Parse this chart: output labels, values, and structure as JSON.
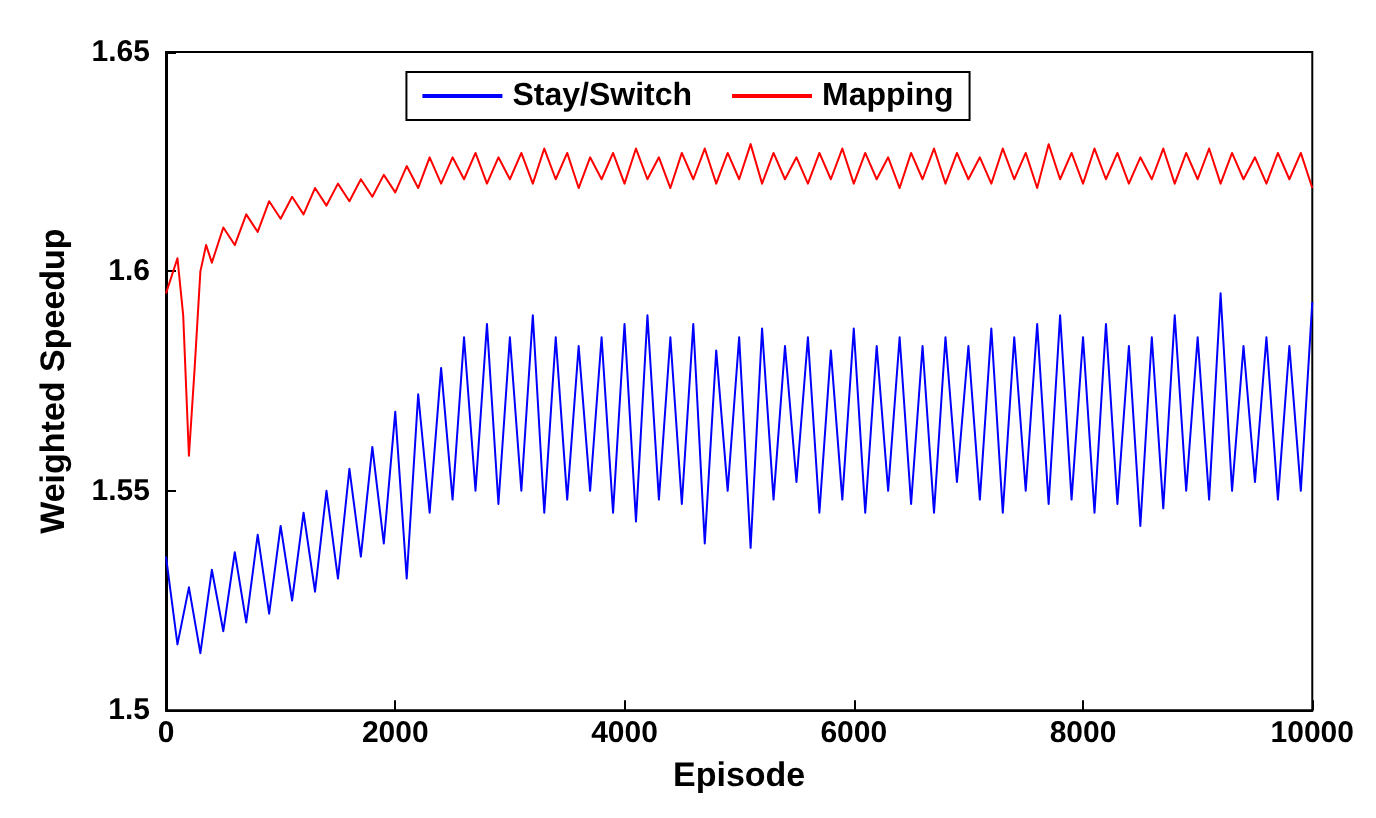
{
  "chart_data": {
    "type": "line",
    "xlabel": "Episode",
    "ylabel": "Weighted Speedup",
    "xlim": [
      0,
      10000
    ],
    "xticks": [
      0,
      2000,
      4000,
      6000,
      8000,
      10000
    ],
    "ylim": [
      1.5,
      1.65
    ],
    "yticks": [
      1.5,
      1.55,
      1.6,
      1.65
    ],
    "grid": false,
    "legend": "top",
    "marker": "none",
    "line_style": "solid",
    "series": [
      {
        "name": "Stay/Switch",
        "color": "#0000ff",
        "x": [
          0,
          100,
          200,
          300,
          400,
          500,
          600,
          700,
          800,
          900,
          1000,
          1100,
          1200,
          1300,
          1400,
          1500,
          1600,
          1700,
          1800,
          1900,
          2000,
          2100,
          2200,
          2300,
          2400,
          2500,
          2600,
          2700,
          2800,
          2900,
          3000,
          3100,
          3200,
          3300,
          3400,
          3500,
          3600,
          3700,
          3800,
          3900,
          4000,
          4100,
          4200,
          4300,
          4400,
          4500,
          4600,
          4700,
          4800,
          4900,
          5000,
          5100,
          5200,
          5300,
          5400,
          5500,
          5600,
          5700,
          5800,
          5900,
          6000,
          6100,
          6200,
          6300,
          6400,
          6500,
          6600,
          6700,
          6800,
          6900,
          7000,
          7100,
          7200,
          7300,
          7400,
          7500,
          7600,
          7700,
          7800,
          7900,
          8000,
          8100,
          8200,
          8300,
          8400,
          8500,
          8600,
          8700,
          8800,
          8900,
          9000,
          9100,
          9200,
          9300,
          9400,
          9500,
          9600,
          9700,
          9800,
          9900,
          10000
        ],
        "values": [
          1.535,
          1.515,
          1.528,
          1.513,
          1.532,
          1.518,
          1.536,
          1.52,
          1.54,
          1.522,
          1.542,
          1.525,
          1.545,
          1.527,
          1.55,
          1.53,
          1.555,
          1.535,
          1.56,
          1.538,
          1.568,
          1.53,
          1.572,
          1.545,
          1.578,
          1.548,
          1.585,
          1.55,
          1.588,
          1.547,
          1.585,
          1.55,
          1.59,
          1.545,
          1.585,
          1.548,
          1.583,
          1.55,
          1.585,
          1.545,
          1.588,
          1.543,
          1.59,
          1.548,
          1.585,
          1.547,
          1.588,
          1.538,
          1.582,
          1.55,
          1.585,
          1.537,
          1.587,
          1.548,
          1.583,
          1.552,
          1.585,
          1.545,
          1.582,
          1.548,
          1.587,
          1.545,
          1.583,
          1.55,
          1.585,
          1.547,
          1.583,
          1.545,
          1.585,
          1.552,
          1.583,
          1.548,
          1.587,
          1.545,
          1.585,
          1.55,
          1.588,
          1.547,
          1.59,
          1.548,
          1.585,
          1.545,
          1.588,
          1.547,
          1.583,
          1.542,
          1.585,
          1.546,
          1.59,
          1.55,
          1.585,
          1.548,
          1.595,
          1.55,
          1.583,
          1.552,
          1.585,
          1.548,
          1.583,
          1.55,
          1.593
        ]
      },
      {
        "name": "Mapping",
        "color": "#ff0000",
        "x": [
          0,
          100,
          150,
          200,
          250,
          300,
          350,
          400,
          500,
          600,
          700,
          800,
          900,
          1000,
          1100,
          1200,
          1300,
          1400,
          1500,
          1600,
          1700,
          1800,
          1900,
          2000,
          2100,
          2200,
          2300,
          2400,
          2500,
          2600,
          2700,
          2800,
          2900,
          3000,
          3100,
          3200,
          3300,
          3400,
          3500,
          3600,
          3700,
          3800,
          3900,
          4000,
          4100,
          4200,
          4300,
          4400,
          4500,
          4600,
          4700,
          4800,
          4900,
          5000,
          5100,
          5200,
          5300,
          5400,
          5500,
          5600,
          5700,
          5800,
          5900,
          6000,
          6100,
          6200,
          6300,
          6400,
          6500,
          6600,
          6700,
          6800,
          6900,
          7000,
          7100,
          7200,
          7300,
          7400,
          7500,
          7600,
          7700,
          7800,
          7900,
          8000,
          8100,
          8200,
          8300,
          8400,
          8500,
          8600,
          8700,
          8800,
          8900,
          9000,
          9100,
          9200,
          9300,
          9400,
          9500,
          9600,
          9700,
          9800,
          9900,
          10000
        ],
        "values": [
          1.595,
          1.603,
          1.59,
          1.558,
          1.578,
          1.6,
          1.606,
          1.602,
          1.61,
          1.606,
          1.613,
          1.609,
          1.616,
          1.612,
          1.617,
          1.613,
          1.619,
          1.615,
          1.62,
          1.616,
          1.621,
          1.617,
          1.622,
          1.618,
          1.624,
          1.619,
          1.626,
          1.62,
          1.626,
          1.621,
          1.627,
          1.62,
          1.626,
          1.621,
          1.627,
          1.62,
          1.628,
          1.621,
          1.627,
          1.619,
          1.626,
          1.621,
          1.627,
          1.62,
          1.628,
          1.621,
          1.626,
          1.619,
          1.627,
          1.621,
          1.628,
          1.62,
          1.627,
          1.621,
          1.629,
          1.62,
          1.627,
          1.621,
          1.626,
          1.62,
          1.627,
          1.621,
          1.628,
          1.62,
          1.627,
          1.621,
          1.626,
          1.619,
          1.627,
          1.621,
          1.628,
          1.62,
          1.627,
          1.621,
          1.626,
          1.62,
          1.628,
          1.621,
          1.627,
          1.619,
          1.629,
          1.621,
          1.627,
          1.62,
          1.628,
          1.621,
          1.627,
          1.62,
          1.626,
          1.621,
          1.628,
          1.62,
          1.627,
          1.621,
          1.628,
          1.62,
          1.627,
          1.621,
          1.626,
          1.62,
          1.627,
          1.621,
          1.627,
          1.619
        ]
      }
    ]
  }
}
